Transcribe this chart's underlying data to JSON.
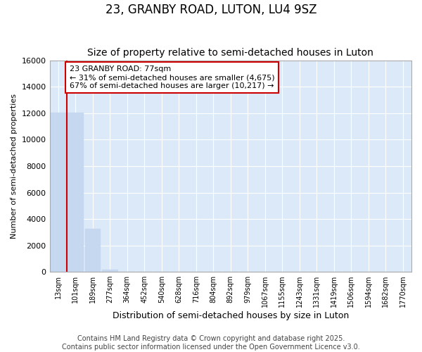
{
  "title": "23, GRANBY ROAD, LUTON, LU4 9SZ",
  "subtitle": "Size of property relative to semi-detached houses in Luton",
  "xlabel": "Distribution of semi-detached houses by size in Luton",
  "ylabel": "Number of semi-detached properties",
  "categories": [
    "13sqm",
    "101sqm",
    "189sqm",
    "277sqm",
    "364sqm",
    "452sqm",
    "540sqm",
    "628sqm",
    "716sqm",
    "804sqm",
    "892sqm",
    "979sqm",
    "1067sqm",
    "1155sqm",
    "1243sqm",
    "1331sqm",
    "1419sqm",
    "1506sqm",
    "1594sqm",
    "1682sqm",
    "1770sqm"
  ],
  "values": [
    12050,
    12050,
    3250,
    190,
    0,
    0,
    0,
    0,
    0,
    0,
    0,
    0,
    0,
    0,
    0,
    0,
    0,
    0,
    0,
    0,
    0
  ],
  "bar_color": "#c5d8f0",
  "bar_edge_color": "#c5d8f0",
  "vline_x": 0.5,
  "vline_color": "#cc0000",
  "annotation_text": "23 GRANBY ROAD: 77sqm\n← 31% of semi-detached houses are smaller (4,675)\n67% of semi-detached houses are larger (10,217) →",
  "annotation_box_color": "#ffffff",
  "annotation_box_edge": "#cc0000",
  "ylim": [
    0,
    16000
  ],
  "yticks": [
    0,
    2000,
    4000,
    6000,
    8000,
    10000,
    12000,
    14000,
    16000
  ],
  "fig_background": "#ffffff",
  "plot_background": "#dce9f8",
  "grid_color": "#ffffff",
  "footer_line1": "Contains HM Land Registry data © Crown copyright and database right 2025.",
  "footer_line2": "Contains public sector information licensed under the Open Government Licence v3.0.",
  "title_fontsize": 12,
  "subtitle_fontsize": 10,
  "ylabel_fontsize": 8,
  "xlabel_fontsize": 9,
  "tick_fontsize": 7,
  "footer_fontsize": 7,
  "annotation_fontsize": 8
}
